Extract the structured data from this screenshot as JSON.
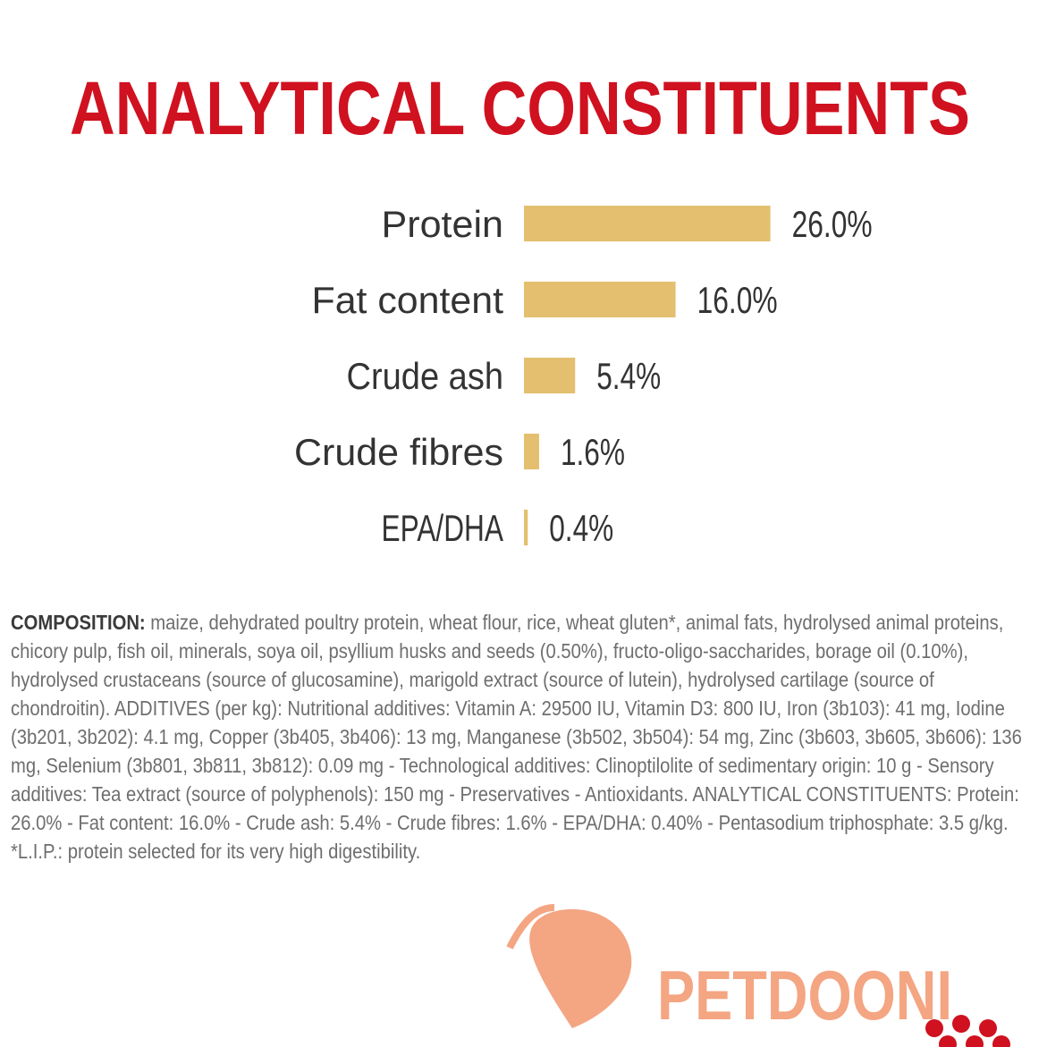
{
  "chart_data": {
    "type": "bar",
    "orientation": "horizontal",
    "title": "ANALYTICAL CONSTITUENTS",
    "categories": [
      "Protein",
      "Fat content",
      "Crude ash",
      "Crude fibres",
      "EPA/DHA"
    ],
    "values": [
      26.0,
      16.0,
      5.4,
      1.6,
      0.4
    ],
    "value_labels": [
      "26.0%",
      "16.0%",
      "5.4%",
      "1.6%",
      "0.4%"
    ],
    "color": "#e3bf6f",
    "title_color": "#d0111f"
  },
  "composition": {
    "label": "COMPOSITION:",
    "text": "maize, dehydrated poultry protein, wheat flour, rice, wheat gluten*, animal fats, hydrolysed animal proteins, chicory pulp, fish oil, minerals, soya oil, psyllium husks and seeds (0.50%), fructo-oligo-saccharides, borage oil (0.10%), hydrolysed crustaceans (source of glucosamine), marigold extract (source of lutein), hydrolysed cartilage (source of chondroitin). ADDITIVES (per kg): Nutritional additives: Vitamin A: 29500 IU, Vitamin D3: 800 IU, Iron (3b103): 41 mg, Iodine (3b201, 3b202): 4.1 mg, Copper (3b405, 3b406): 13 mg, Manganese (3b502, 3b504): 54 mg, Zinc (3b603, 3b605, 3b606): 136 mg, Selenium (3b801, 3b811, 3b812): 0.09 mg - Technological additives: Clinoptilolite of sedimentary origin: 10 g - Sensory additives: Tea extract (source of polyphenols): 150 mg - Preservatives - Antioxidants. ANALYTICAL CONSTITUENTS: Protein: 26.0% - Fat content: 16.0% - Crude ash: 5.4% - Crude fibres: 1.6% - EPA/DHA: 0.40% - Pentasodium triphosphate: 3.5 g/kg. *L.I.P.: protein selected for its very high digestibility."
  },
  "watermark": "PETDOONI"
}
